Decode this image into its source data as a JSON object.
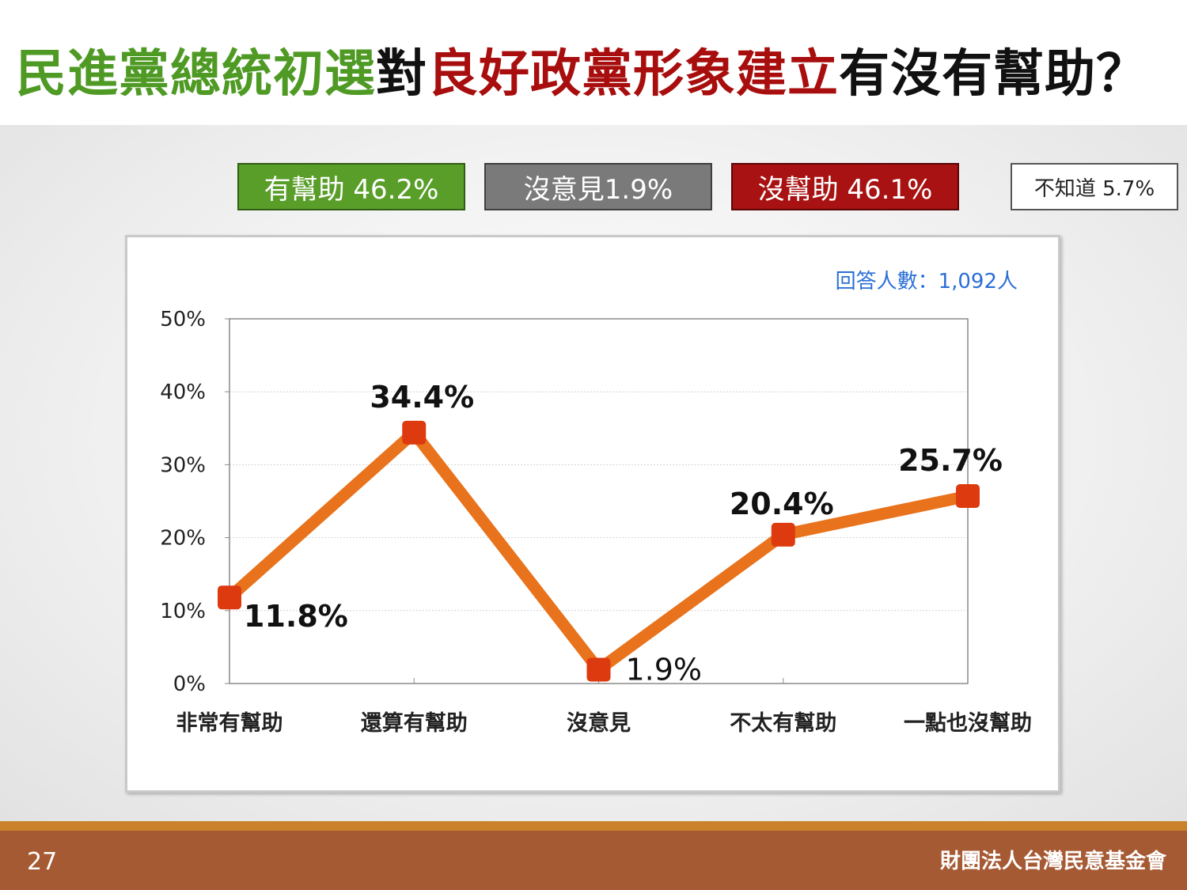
{
  "title": {
    "part1": "民進黨總統初選",
    "part2": "對",
    "part3": "良好政黨形象建立",
    "part4": "有沒有幫助？"
  },
  "legend": {
    "helpful": "有幫助 46.2%",
    "no_opinion": "沒意見1.9%",
    "not_helpful": "沒幫助 46.1%",
    "dont_know": "不知道 5.7%"
  },
  "colors": {
    "title_green": "#4f9a24",
    "title_black": "#111111",
    "title_red": "#a80e0e",
    "line": "#e8731c",
    "marker": "#dd3a10",
    "respondents": "#2a6fd6"
  },
  "respondents": "回答人數：1,092人",
  "footer": {
    "page_number": "27",
    "organization": "財團法人台灣民意基金會"
  },
  "chart_data": {
    "type": "line",
    "categories": [
      "非常有幫助",
      "還算有幫助",
      "沒意見",
      "不太有幫助",
      "一點也沒幫助"
    ],
    "values": [
      11.8,
      34.4,
      1.9,
      20.4,
      25.7
    ],
    "data_labels": [
      "11.8%",
      "34.4%",
      "1.9%",
      "20.4%",
      "25.7%"
    ],
    "y_ticks": [
      "0%",
      "10%",
      "20%",
      "30%",
      "40%",
      "50%"
    ],
    "ylim": [
      0,
      50
    ],
    "grid": true
  }
}
